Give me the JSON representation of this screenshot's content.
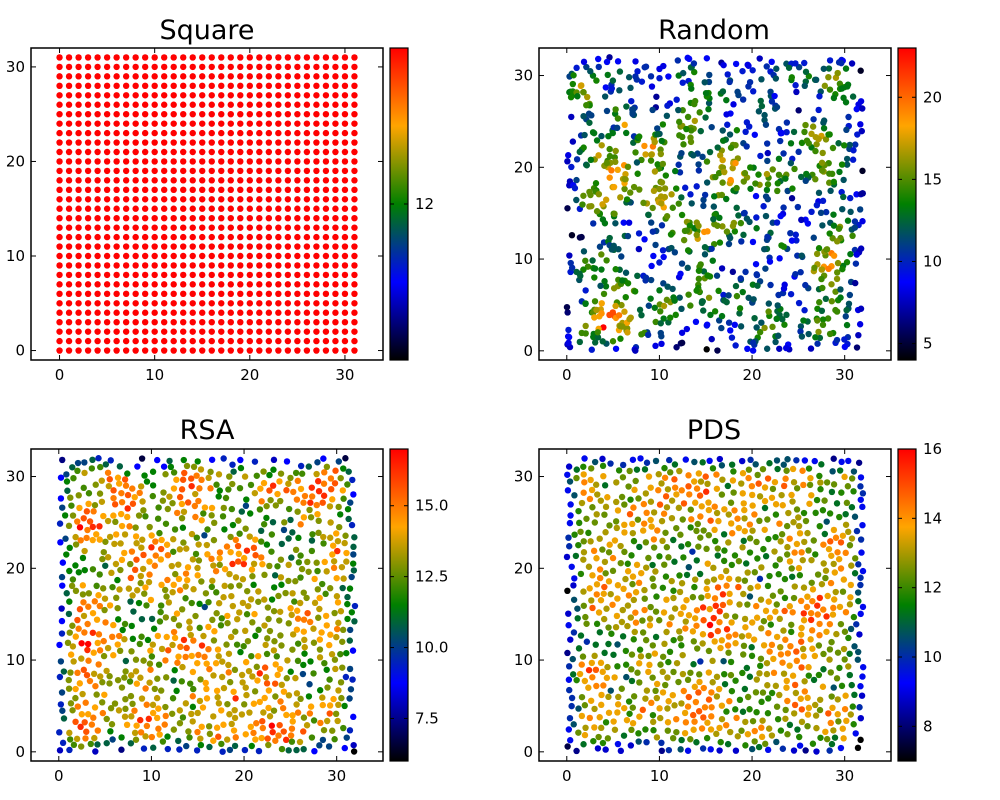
{
  "colormap": [
    "#000000",
    "#0000ff",
    "#008000",
    "#ffa500",
    "#ff0000"
  ],
  "chart_data": [
    {
      "type": "scatter",
      "title": "Square",
      "layout": "regular-grid",
      "grid_size": 32,
      "xlim": [
        -3,
        34
      ],
      "ylim": [
        -1,
        32
      ],
      "xticks": [
        0,
        10,
        20,
        30
      ],
      "yticks": [
        0,
        10,
        20,
        30
      ],
      "color_value": 12,
      "clim": [
        11,
        13
      ],
      "colorbar_ticks": [
        12
      ],
      "colorbar_labels": [
        "12"
      ],
      "n_points": 1024
    },
    {
      "type": "scatter",
      "title": "Random",
      "layout": "uniform-random",
      "xlim": [
        -3,
        35
      ],
      "ylim": [
        -1,
        33
      ],
      "xticks": [
        0,
        10,
        20,
        30
      ],
      "yticks": [
        0,
        10,
        20,
        30
      ],
      "clim": [
        4,
        23
      ],
      "colorbar_ticks": [
        5,
        10,
        15,
        20
      ],
      "colorbar_labels": [
        "5",
        "10",
        "15",
        "20"
      ],
      "n_points": 1024,
      "seed": 11
    },
    {
      "type": "scatter",
      "title": "RSA",
      "layout": "random-sequential-adsorption",
      "xlim": [
        -3,
        35
      ],
      "ylim": [
        -1,
        33
      ],
      "xticks": [
        0,
        10,
        20,
        30
      ],
      "yticks": [
        0,
        10,
        20,
        30
      ],
      "clim": [
        6,
        17
      ],
      "colorbar_ticks": [
        7.5,
        10.0,
        12.5,
        15.0
      ],
      "colorbar_labels": [
        "7.5",
        "10.0",
        "12.5",
        "15.0"
      ],
      "n_points": 1024,
      "seed": 23
    },
    {
      "type": "scatter",
      "title": "PDS",
      "layout": "poisson-disk-sampling",
      "xlim": [
        -3,
        35
      ],
      "ylim": [
        -1,
        33
      ],
      "xticks": [
        0,
        10,
        20,
        30
      ],
      "yticks": [
        0,
        10,
        20,
        30
      ],
      "clim": [
        7,
        16
      ],
      "colorbar_ticks": [
        8,
        10,
        12,
        14,
        16
      ],
      "colorbar_labels": [
        "8",
        "10",
        "12",
        "14",
        "16"
      ],
      "n_points": 1024,
      "seed": 37
    }
  ]
}
